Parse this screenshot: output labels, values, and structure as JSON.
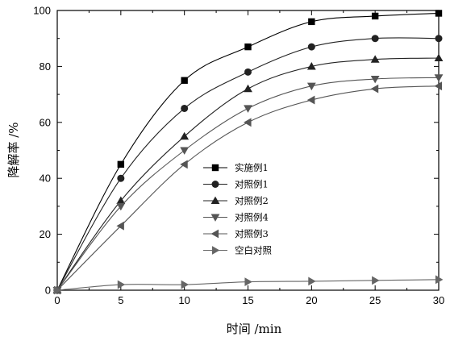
{
  "chart_data": {
    "type": "line",
    "xlabel": "时间 /min",
    "ylabel": "降解率 /%",
    "xlim": [
      0,
      30
    ],
    "ylim": [
      0,
      100
    ],
    "x_ticks": [
      0,
      5,
      10,
      15,
      20,
      25,
      30
    ],
    "y_ticks": [
      0,
      20,
      40,
      60,
      80,
      100
    ],
    "grid": false,
    "legend_position": "center",
    "x": [
      0,
      5,
      10,
      15,
      20,
      25,
      30
    ],
    "series": [
      {
        "name": "实施例1",
        "marker": "square",
        "color": "#000000",
        "values": [
          0,
          45,
          75,
          87,
          96,
          98,
          99
        ]
      },
      {
        "name": "对照例1",
        "marker": "circle",
        "color": "#222222",
        "values": [
          0,
          40,
          65,
          78,
          87,
          90,
          90
        ]
      },
      {
        "name": "对照例2",
        "marker": "triangle-up",
        "color": "#222222",
        "values": [
          0,
          32,
          55,
          72,
          80,
          82.5,
          83
        ]
      },
      {
        "name": "对照例4",
        "marker": "triangle-down",
        "color": "#555555",
        "values": [
          0,
          30,
          50,
          65,
          73,
          75.5,
          76
        ]
      },
      {
        "name": "对照例3",
        "marker": "triangle-left",
        "color": "#555555",
        "values": [
          0,
          23,
          45,
          60,
          68,
          72,
          73
        ]
      },
      {
        "name": "空白对照",
        "marker": "triangle-right",
        "color": "#666666",
        "values": [
          0,
          2,
          2,
          3,
          3.2,
          3.5,
          3.8
        ]
      }
    ]
  }
}
